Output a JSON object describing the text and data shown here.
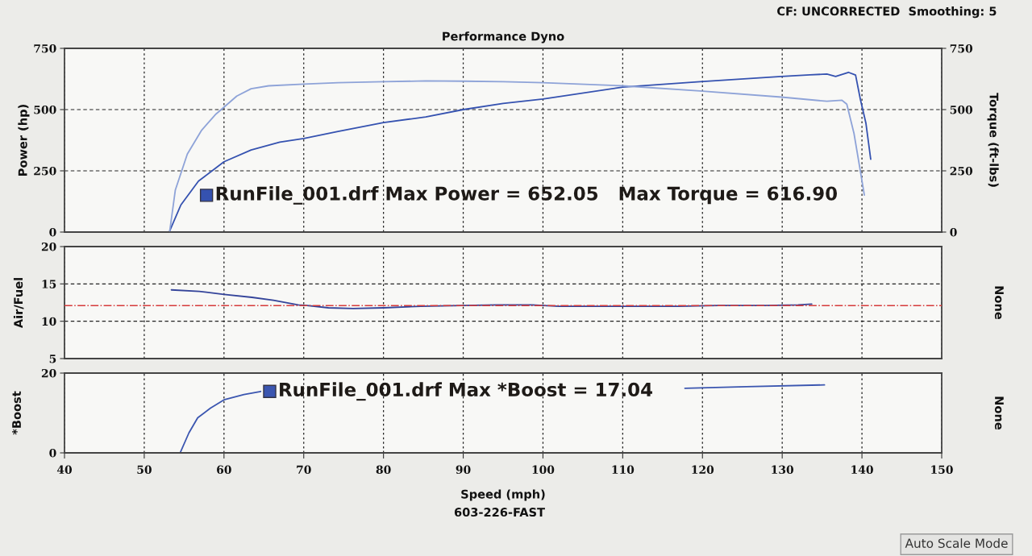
{
  "chart_data": [
    {
      "type": "line",
      "title": "Performance Dyno",
      "ylabel": "Power (hp)",
      "y2label": "Torque (ft-lbs)",
      "xlim": [
        40,
        150
      ],
      "xticks": [
        40,
        50,
        60,
        70,
        80,
        90,
        100,
        110,
        120,
        130,
        140,
        150
      ],
      "ylim": [
        0,
        750
      ],
      "yticks": [
        0,
        250,
        500,
        750
      ],
      "y2lim": [
        0,
        750
      ],
      "y2ticks": [
        0,
        250,
        500,
        750
      ],
      "tick_labels": "y",
      "grid": true,
      "marker": "none",
      "line_style": "solid",
      "annotations": [
        "RunFile_001.drf Max Power = 652.05   Max Torque = 616.90",
        "CF: UNCORRECTED  Smoothing: 5"
      ],
      "series": [
        {
          "color": "#3552b0",
          "x": [
            53.2,
            54.6,
            56.8,
            60,
            63.4,
            67,
            70,
            74.3,
            80,
            85.3,
            90,
            95,
            100,
            110,
            119.7,
            129.9,
            133.5,
            135.6,
            136.7,
            138.3,
            139.2,
            139.8,
            140.5,
            141.1
          ],
          "values": [
            5,
            111,
            208,
            287,
            335,
            367,
            382,
            411,
            447,
            470,
            500,
            525,
            543,
            592,
            614,
            635,
            642,
            645,
            635,
            652.05,
            641,
            542,
            444,
            297
          ]
        },
        {
          "color": "#8ea3d8",
          "axis": "y2",
          "x": [
            53.2,
            53.9,
            55.4,
            57.2,
            59,
            60,
            61.6,
            63.4,
            65.6,
            70,
            74.3,
            80,
            85.3,
            90,
            95,
            100,
            110,
            119.7,
            129.9,
            135.6,
            137.5,
            138.1,
            139,
            139.8,
            140.3
          ],
          "values": [
            5,
            172,
            318,
            416,
            482,
            510,
            555,
            585,
            597,
            604,
            610,
            614,
            616.9,
            616,
            614,
            610,
            597,
            576,
            551,
            534,
            538,
            522,
            403,
            249,
            151
          ]
        }
      ]
    },
    {
      "type": "line",
      "ylabel": "Air/Fuel",
      "y2label": "None",
      "xlim": [
        40,
        150
      ],
      "xticks": [
        40,
        50,
        60,
        70,
        80,
        90,
        100,
        110,
        120,
        130,
        140,
        150
      ],
      "ylim": [
        5,
        20
      ],
      "yticks": [
        5,
        10,
        15,
        20
      ],
      "tick_labels": "y",
      "grid": true,
      "marker": "none",
      "line_style": "solid",
      "ref_lines": [
        {
          "axis": "y",
          "value": 12.1,
          "color": "#d63a3a",
          "line_style": "dashdot"
        }
      ],
      "series": [
        {
          "color": "#34449a",
          "x": [
            53.4,
            56.9,
            60,
            63.5,
            66.2,
            69.3,
            70.4,
            73.1,
            76.2,
            80,
            84.7,
            90,
            94.3,
            98.6,
            102,
            110,
            117,
            122,
            128,
            132,
            133.7
          ],
          "values": [
            14.2,
            14.0,
            13.6,
            13.2,
            12.8,
            12.2,
            12.1,
            11.8,
            11.7,
            11.8,
            12.0,
            12.1,
            12.2,
            12.2,
            12.0,
            12.0,
            12.0,
            12.1,
            12.1,
            12.2,
            12.3
          ]
        }
      ]
    },
    {
      "type": "line",
      "ylabel": "*Boost",
      "y2label": "None",
      "xlabel": "Speed (mph)",
      "xlim": [
        40,
        150
      ],
      "xticks": [
        40,
        50,
        60,
        70,
        80,
        90,
        100,
        110,
        120,
        130,
        140,
        150
      ],
      "ylim": [
        0,
        20
      ],
      "yticks": [
        0,
        20
      ],
      "grid": true,
      "marker": "none",
      "line_style": "solid",
      "annotations": [
        "RunFile_001.drf Max *Boost = 17.04",
        "603-226-FAST",
        "Auto Scale Mode"
      ],
      "series": [
        {
          "color": "#3b56b0",
          "x": [
            54.5,
            55.6,
            56.7,
            58.3,
            60,
            62.5,
            64.6,
            90,
            117.8,
            125.5,
            135.3
          ],
          "values": [
            0,
            5.0,
            8.8,
            11.2,
            13.3,
            14.6,
            15.4,
            null,
            16.2,
            16.6,
            17.04
          ]
        }
      ]
    }
  ]
}
